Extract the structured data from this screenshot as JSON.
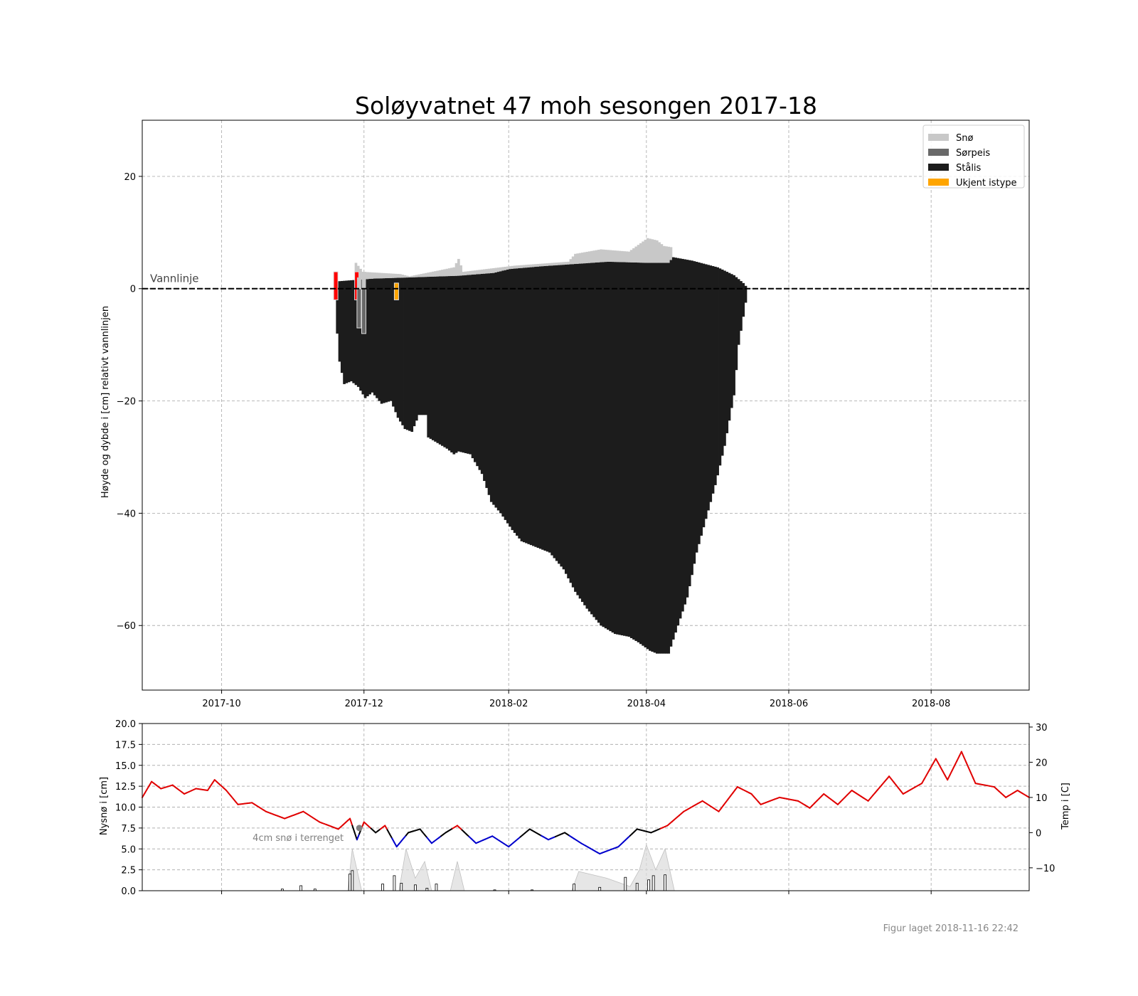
{
  "footer": "Figur laget 2018-11-16 22:42",
  "chart_data": [
    {
      "type": "bar",
      "title": "Soløyvatnet 47 moh sesongen 2017-18",
      "ylabel": "Høyde og dybde i [cm] relativt vannlinjen",
      "xlim": [
        "2017-08-28",
        "2018-09-12"
      ],
      "ylim": [
        -71.5,
        30
      ],
      "xticks": [
        "2017-10",
        "2017-12",
        "2018-02",
        "2018-04",
        "2018-06",
        "2018-08"
      ],
      "yticks": [
        -60,
        -40,
        -20,
        0,
        20
      ],
      "grid": true,
      "legend_position": "top-right",
      "legend": [
        {
          "label": "Snø",
          "color": "#c8c8c8"
        },
        {
          "label": "Sørpeis",
          "color": "#696969"
        },
        {
          "label": "Stålis",
          "color": "#1c1c1c"
        },
        {
          "label": "Ukjent istype",
          "color": "#ffa500"
        }
      ],
      "waterline": {
        "label": "Vannlinje",
        "value": 0
      },
      "colors": {
        "snow": "#c8c8c8",
        "slush": "#696969",
        "black_ice": "#1c1c1c",
        "unknown": "#ffa500",
        "marker": "#ff0000"
      },
      "black_ice_bottom_cm": [
        [
          "2017-11-19",
          -8
        ],
        [
          "2017-11-20",
          -13
        ],
        [
          "2017-11-21",
          -15
        ],
        [
          "2017-11-22",
          -17
        ],
        [
          "2017-11-25",
          -16.5
        ],
        [
          "2017-11-28",
          -17.5
        ],
        [
          "2017-12-01",
          -19.5
        ],
        [
          "2017-12-04",
          -18.5
        ],
        [
          "2017-12-08",
          -20.5
        ],
        [
          "2017-12-12",
          -20
        ],
        [
          "2017-12-15",
          -23
        ],
        [
          "2017-12-18",
          -25
        ],
        [
          "2017-12-21",
          -25.5
        ],
        [
          "2017-12-24",
          -22.5
        ],
        [
          "2017-12-27",
          -22.5
        ],
        [
          "2017-12-28",
          -26.5
        ],
        [
          "2018-01-01",
          -27.5
        ],
        [
          "2018-01-05",
          -28.5
        ],
        [
          "2018-01-08",
          -29.5
        ],
        [
          "2018-01-10",
          -29
        ],
        [
          "2018-01-15",
          -29.5
        ],
        [
          "2018-01-20",
          -33
        ],
        [
          "2018-01-24",
          -38
        ],
        [
          "2018-01-28",
          -40
        ],
        [
          "2018-02-02",
          -43
        ],
        [
          "2018-02-06",
          -45
        ],
        [
          "2018-02-12",
          -46
        ],
        [
          "2018-02-18",
          -47
        ],
        [
          "2018-02-24",
          -50
        ],
        [
          "2018-03-01",
          -54
        ],
        [
          "2018-03-06",
          -57
        ],
        [
          "2018-03-12",
          -60
        ],
        [
          "2018-03-18",
          -61.5
        ],
        [
          "2018-03-24",
          -62
        ],
        [
          "2018-03-28",
          -63
        ],
        [
          "2018-04-02",
          -64.5
        ],
        [
          "2018-04-05",
          -65
        ],
        [
          "2018-04-10",
          -65
        ],
        [
          "2018-04-14",
          -60
        ],
        [
          "2018-04-18",
          -55
        ],
        [
          "2018-04-22",
          -47
        ],
        [
          "2018-04-26",
          -41
        ],
        [
          "2018-04-30",
          -35
        ],
        [
          "2018-05-04",
          -28
        ],
        [
          "2018-05-08",
          -19
        ],
        [
          "2018-05-10",
          -10
        ],
        [
          "2018-05-12",
          -5
        ],
        [
          "2018-05-14",
          0
        ]
      ],
      "black_ice_top_cm": [
        [
          "2017-11-19",
          1.3
        ],
        [
          "2017-11-25",
          1.5
        ],
        [
          "2017-12-05",
          1.8
        ],
        [
          "2017-12-20",
          2.0
        ],
        [
          "2018-01-10",
          2.3
        ],
        [
          "2018-01-25",
          2.8
        ],
        [
          "2018-02-01",
          3.5
        ],
        [
          "2018-02-15",
          4.0
        ],
        [
          "2018-03-01",
          4.4
        ],
        [
          "2018-03-15",
          4.8
        ],
        [
          "2018-04-01",
          4.6
        ],
        [
          "2018-04-10",
          4.6
        ],
        [
          "2018-04-12",
          5.6
        ],
        [
          "2018-04-20",
          5.0
        ],
        [
          "2018-05-01",
          3.8
        ],
        [
          "2018-05-08",
          2.4
        ],
        [
          "2018-05-12",
          1.0
        ],
        [
          "2018-05-14",
          0
        ]
      ],
      "snow_top_cm": [
        [
          "2017-11-27",
          4.6
        ],
        [
          "2017-11-30",
          3.0
        ],
        [
          "2017-12-16",
          2.6
        ],
        [
          "2017-12-20",
          2.2
        ],
        [
          "2018-01-01",
          3.2
        ],
        [
          "2018-01-08",
          3.8
        ],
        [
          "2018-01-10",
          5.3
        ],
        [
          "2018-01-12",
          3.0
        ],
        [
          "2018-02-03",
          4.1
        ],
        [
          "2018-02-26",
          4.8
        ],
        [
          "2018-03-01",
          6.2
        ],
        [
          "2018-03-12",
          7.0
        ],
        [
          "2018-03-24",
          6.6
        ],
        [
          "2018-04-01",
          9.0
        ],
        [
          "2018-04-05",
          8.6
        ],
        [
          "2018-04-08",
          7.6
        ],
        [
          "2018-04-11",
          7.4
        ]
      ],
      "early_measurements_cm": [
        {
          "date": "2017-11-18",
          "kind": "marker",
          "top": 3,
          "bottom": -2
        },
        {
          "date": "2017-11-27",
          "kind": "marker",
          "top": 3,
          "bottom": -2
        },
        {
          "date": "2017-11-28",
          "kind": "slush",
          "top": 0,
          "bottom": -7
        },
        {
          "date": "2017-11-30",
          "kind": "slush",
          "top": 1,
          "bottom": -8
        },
        {
          "date": "2017-12-14",
          "kind": "unknown",
          "top": 1,
          "bottom": -2
        }
      ]
    },
    {
      "type": "line",
      "ylabel": "Nysnø i [cm]",
      "y2label": "Temp i [C]",
      "ylim": [
        0,
        20
      ],
      "y2lim": [
        -16.5,
        31
      ],
      "yticks": [
        0.0,
        2.5,
        5.0,
        7.5,
        10.0,
        12.5,
        15.0,
        17.5,
        20.0
      ],
      "y2ticks": [
        -10,
        0,
        10,
        20,
        30
      ],
      "colors": {
        "warm": "#e00000",
        "near_zero": "#000000",
        "cold": "#0000cc",
        "snow_depth_fill": "#dcdcdc"
      },
      "annotation": {
        "text": "4cm snø i terrenget",
        "date": "2017-11-29",
        "value": 7.5
      },
      "temperature_c": [
        [
          "2017-08-28",
          10
        ],
        [
          "2017-09-01",
          14.5
        ],
        [
          "2017-09-05",
          12.5
        ],
        [
          "2017-09-10",
          13.5
        ],
        [
          "2017-09-15",
          11
        ],
        [
          "2017-09-20",
          12.5
        ],
        [
          "2017-09-25",
          12
        ],
        [
          "2017-09-28",
          15
        ],
        [
          "2017-10-03",
          12
        ],
        [
          "2017-10-08",
          8
        ],
        [
          "2017-10-14",
          8.5
        ],
        [
          "2017-10-20",
          6
        ],
        [
          "2017-10-28",
          4
        ],
        [
          "2017-11-05",
          6
        ],
        [
          "2017-11-12",
          3
        ],
        [
          "2017-11-20",
          1
        ],
        [
          "2017-11-25",
          4
        ],
        [
          "2017-11-28",
          -2
        ],
        [
          "2017-12-01",
          3
        ],
        [
          "2017-12-06",
          0
        ],
        [
          "2017-12-10",
          2
        ],
        [
          "2017-12-15",
          -4
        ],
        [
          "2017-12-20",
          0
        ],
        [
          "2017-12-25",
          1
        ],
        [
          "2017-12-30",
          -3
        ],
        [
          "2018-01-05",
          0
        ],
        [
          "2018-01-10",
          2
        ],
        [
          "2018-01-18",
          -3
        ],
        [
          "2018-01-25",
          -1
        ],
        [
          "2018-02-01",
          -4
        ],
        [
          "2018-02-10",
          1
        ],
        [
          "2018-02-18",
          -2
        ],
        [
          "2018-02-25",
          0
        ],
        [
          "2018-03-04",
          -3
        ],
        [
          "2018-03-12",
          -6
        ],
        [
          "2018-03-20",
          -4
        ],
        [
          "2018-03-28",
          1
        ],
        [
          "2018-04-03",
          0
        ],
        [
          "2018-04-10",
          2
        ],
        [
          "2018-04-17",
          6
        ],
        [
          "2018-04-25",
          9
        ],
        [
          "2018-05-02",
          6
        ],
        [
          "2018-05-10",
          13
        ],
        [
          "2018-05-16",
          11
        ],
        [
          "2018-05-20",
          8
        ],
        [
          "2018-05-28",
          10
        ],
        [
          "2018-06-05",
          9
        ],
        [
          "2018-06-10",
          7
        ],
        [
          "2018-06-16",
          11
        ],
        [
          "2018-06-22",
          8
        ],
        [
          "2018-06-28",
          12
        ],
        [
          "2018-07-05",
          9
        ],
        [
          "2018-07-14",
          16
        ],
        [
          "2018-07-20",
          11
        ],
        [
          "2018-07-28",
          14
        ],
        [
          "2018-08-03",
          21
        ],
        [
          "2018-08-08",
          15
        ],
        [
          "2018-08-14",
          23
        ],
        [
          "2018-08-20",
          14
        ],
        [
          "2018-08-28",
          13
        ],
        [
          "2018-09-02",
          10
        ],
        [
          "2018-09-07",
          12
        ],
        [
          "2018-09-12",
          10
        ]
      ],
      "new_snow_cm": [
        [
          "2017-10-27",
          0.2
        ],
        [
          "2017-11-04",
          0.6
        ],
        [
          "2017-11-10",
          0.2
        ],
        [
          "2017-11-25",
          2.0
        ],
        [
          "2017-11-26",
          2.4
        ],
        [
          "2017-12-09",
          0.8
        ],
        [
          "2017-12-14",
          1.8
        ],
        [
          "2017-12-17",
          0.9
        ],
        [
          "2017-12-23",
          0.7
        ],
        [
          "2017-12-28",
          0.3
        ],
        [
          "2018-01-01",
          0.8
        ],
        [
          "2018-01-26",
          0.1
        ],
        [
          "2018-02-11",
          0.1
        ],
        [
          "2018-03-01",
          0.8
        ],
        [
          "2018-03-12",
          0.4
        ],
        [
          "2018-03-23",
          1.6
        ],
        [
          "2018-03-28",
          0.9
        ],
        [
          "2018-04-02",
          1.3
        ],
        [
          "2018-04-04",
          1.8
        ],
        [
          "2018-04-09",
          1.9
        ]
      ],
      "snow_depth_cm": [
        [
          "2017-11-24",
          0
        ],
        [
          "2017-11-26",
          5
        ],
        [
          "2017-11-30",
          0
        ],
        [
          "2017-12-16",
          0
        ],
        [
          "2017-12-19",
          5
        ],
        [
          "2017-12-23",
          1.5
        ],
        [
          "2017-12-27",
          3.5
        ],
        [
          "2017-12-30",
          0
        ],
        [
          "2018-01-07",
          0
        ],
        [
          "2018-01-10",
          3.5
        ],
        [
          "2018-01-13",
          0
        ],
        [
          "2018-02-28",
          0
        ],
        [
          "2018-03-03",
          2.3
        ],
        [
          "2018-03-15",
          1.5
        ],
        [
          "2018-03-25",
          0.5
        ],
        [
          "2018-03-29",
          2.5
        ],
        [
          "2018-04-01",
          5.5
        ],
        [
          "2018-04-05",
          2.5
        ],
        [
          "2018-04-09",
          5
        ],
        [
          "2018-04-13",
          0
        ]
      ]
    }
  ]
}
